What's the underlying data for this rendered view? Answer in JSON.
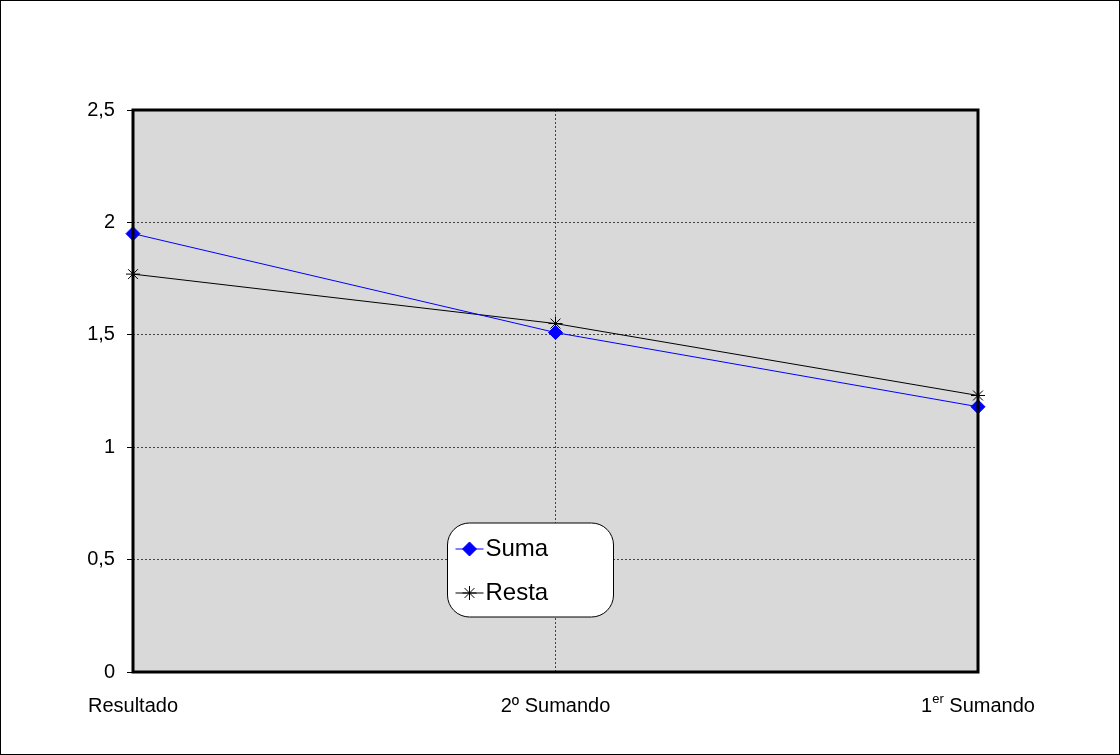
{
  "chart_data": {
    "type": "line",
    "categories": [
      "Resultado",
      "2º Sumando",
      "1$^{er}$ Sumando"
    ],
    "series": [
      {
        "name": "Suma",
        "color": "#0000ff",
        "marker": "diamond",
        "values": [
          1.95,
          1.51,
          1.18
        ]
      },
      {
        "name": "Resta",
        "color": "#000000",
        "marker": "cross",
        "values": [
          1.77,
          1.55,
          1.23
        ]
      }
    ],
    "ylim": [
      0,
      2.5
    ],
    "yticks": [
      0,
      {
        "value": 0.5,
        "label": "0,5"
      },
      1,
      {
        "value": 1.5,
        "label": "1,5"
      },
      2,
      {
        "value": 2.5,
        "label": "2,5"
      }
    ],
    "grid": true,
    "legend": "bottom",
    "line_style": "solid"
  }
}
